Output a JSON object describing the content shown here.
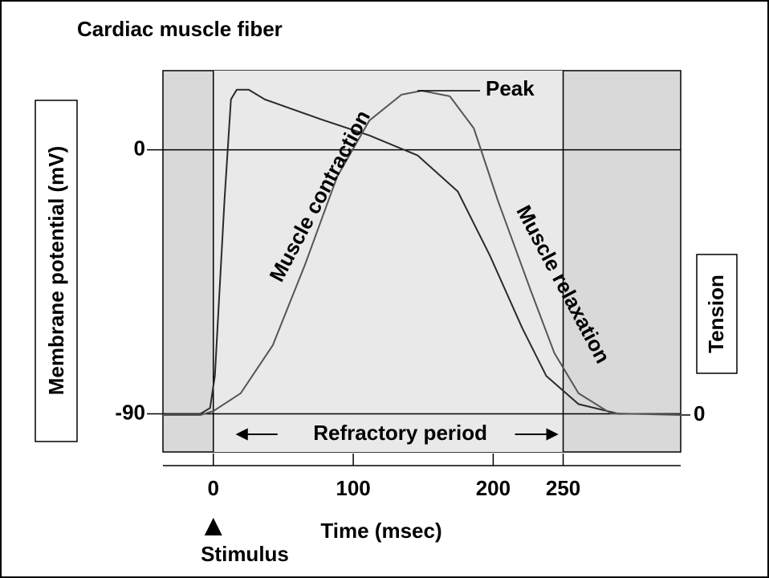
{
  "chart_data": {
    "type": "line",
    "title": "Cardiac muscle fiber",
    "x_label": "Time (msec)",
    "y_label": "Membrane potential (mV)",
    "y2_label": "Tension",
    "annotations": {
      "contraction": "Muscle contraction",
      "relaxation": "Muscle relaxation",
      "peak": "Peak",
      "refractory": "Refractory period",
      "stimulus": "Stimulus"
    },
    "xlim": [
      -36,
      334
    ],
    "xticks": [
      0,
      100,
      200,
      250
    ],
    "ylim": [
      -103,
      27
    ],
    "yticks": [
      0,
      -90
    ],
    "y2lim": [
      -11.4,
      106.2
    ],
    "y2ticks": [
      0
    ],
    "series": [
      {
        "name": "Membrane potential",
        "color": "#2a2a2a",
        "x": [
          -36,
          -9.2,
          -2.3,
          1.1,
          8,
          12.6,
          16.7,
          25.3,
          36.8,
          77,
          111.5,
          146,
          174.7,
          197.7,
          220.7,
          238,
          261,
          289.7,
          334.5
        ],
        "values": [
          -90,
          -90,
          -88,
          -77,
          -17,
          17.2,
          20.5,
          20.5,
          17.2,
          10.4,
          4.9,
          -1.9,
          -14.2,
          -36.1,
          -60.7,
          -77.1,
          -86.7,
          -90,
          -90
        ]
      },
      {
        "name": "Tension",
        "color": "#555555",
        "axis": "y2",
        "x": [
          -36,
          -9.2,
          0,
          19.5,
          42.5,
          65.5,
          88.5,
          111.5,
          134.5,
          148.9,
          169,
          186.2,
          203.4,
          226.4,
          243.7,
          261,
          284,
          334.5
        ],
        "values": [
          0,
          0,
          1.2,
          6.7,
          21.5,
          46.3,
          73.5,
          90.8,
          98.8,
          100,
          98.3,
          88.4,
          66.1,
          38.9,
          19.1,
          6.7,
          0.5,
          0
        ]
      }
    ]
  }
}
